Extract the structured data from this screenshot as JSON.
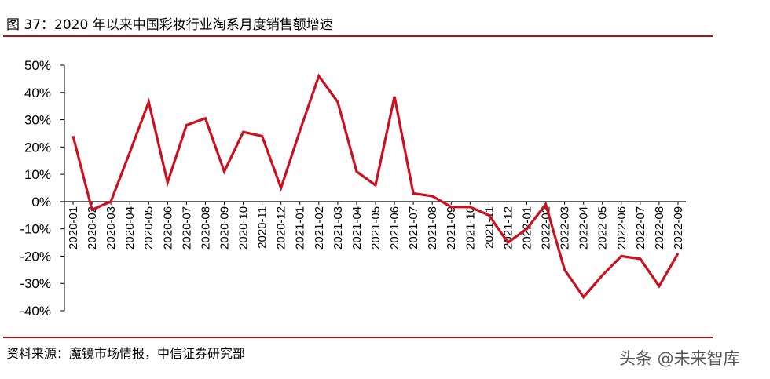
{
  "figure": {
    "title": "图 37：2020 年以来中国彩妆行业淘系月度销售额增速",
    "source": "资料来源：魔镜市场情报，中信证券研究部",
    "watermark": "头条 @未来智库"
  },
  "colors": {
    "line": "#cc1020",
    "rule": "#b00f14"
  },
  "chart_data": {
    "type": "line",
    "title": "",
    "xlabel": "",
    "ylabel": "",
    "ylim": [
      -40,
      50
    ],
    "ytick_step": 10,
    "ytick_format": "percent",
    "grid": false,
    "legend": "none",
    "categories": [
      "2020-01",
      "2020-02",
      "2020-03",
      "2020-04",
      "2020-05",
      "2020-06",
      "2020-07",
      "2020-08",
      "2020-09",
      "2020-10",
      "2020-11",
      "2020-12",
      "2021-01",
      "2021-02",
      "2021-03",
      "2021-04",
      "2021-05",
      "2021-06",
      "2021-07",
      "2021-08",
      "2021-09",
      "2021-10",
      "2021-11",
      "2021-12",
      "2022-01",
      "2022-02",
      "2022-03",
      "2022-04",
      "2022-05",
      "2022-06",
      "2022-07",
      "2022-08",
      "2022-09"
    ],
    "series": [
      {
        "values": [
          24,
          -3,
          0,
          18,
          36.5,
          7,
          28,
          30.5,
          11,
          25.5,
          24,
          5,
          26,
          46,
          36.5,
          11,
          6,
          38.5,
          3,
          2,
          -2,
          -2,
          -5,
          -15,
          -10,
          -1,
          -25,
          -35,
          -27,
          -20,
          -21,
          -31,
          -19
        ]
      }
    ]
  }
}
